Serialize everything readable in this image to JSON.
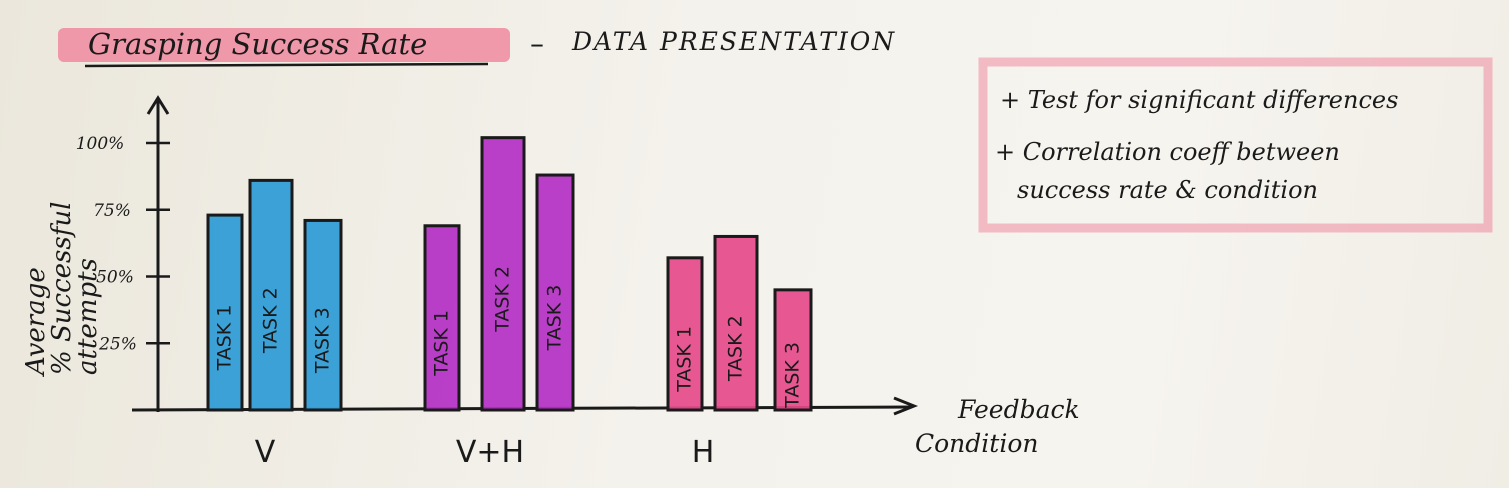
{
  "header": {
    "title": "Grasping Success Rate",
    "dash": "–",
    "subtitle": "DATA PRESENTATION"
  },
  "notes": {
    "line1": "+ Test for significant differences",
    "line2": "+ Correlation coeff between",
    "line3": "success rate & condition"
  },
  "colors": {
    "V": "#2b9ad6",
    "V+H": "#b42fc4",
    "H": "#e54a8a",
    "highlight": "#ee8aa0",
    "ink": "#1a1a1a"
  },
  "chart_data": {
    "type": "bar",
    "title": "Grasping Success Rate",
    "ylabel_lines": [
      "Average",
      "% Successful",
      "attempts"
    ],
    "xlabel_lines": [
      "Feedback",
      "Condition"
    ],
    "yticks": [
      {
        "value": 25,
        "label": "25%"
      },
      {
        "value": 50,
        "label": "50%"
      },
      {
        "value": 75,
        "label": "75%"
      },
      {
        "value": 100,
        "label": "100%"
      }
    ],
    "ylim": [
      0,
      110
    ],
    "categories": [
      "V",
      "V+H",
      "H"
    ],
    "series": [
      {
        "name": "TASK 1",
        "values": [
          73,
          69,
          57
        ]
      },
      {
        "name": "TASK 2",
        "values": [
          86,
          102,
          65
        ]
      },
      {
        "name": "TASK 3",
        "values": [
          71,
          88,
          45
        ]
      }
    ],
    "bar_labels": [
      "TASK 1",
      "TASK 2",
      "TASK 3"
    ]
  }
}
